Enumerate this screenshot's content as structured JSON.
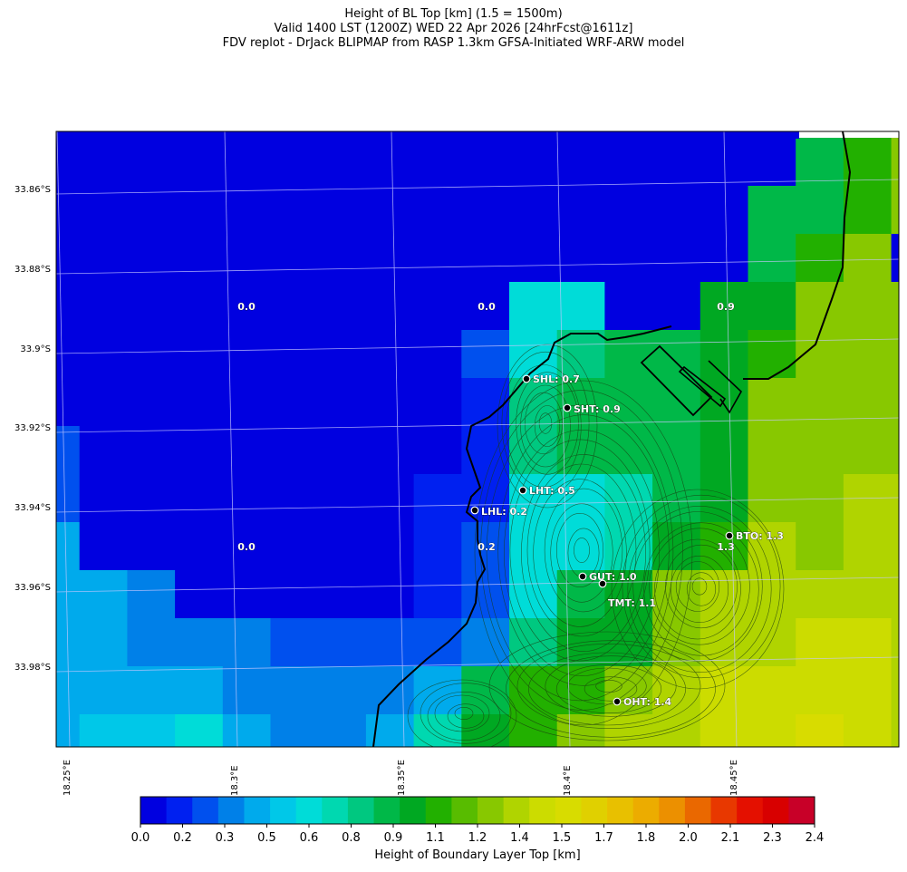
{
  "title": {
    "line1": "Height of BL Top [km] (1.5 = 1500m)",
    "line2": "Valid 1400 LST (1200Z) WED 22 Apr 2026 [24hrFcst@1611z]",
    "line3": "FDV replot - DrJack BLIPMAP from RASP 1.3km GFSA-Initiated WRF-ARW model"
  },
  "map": {
    "lat_labels": [
      "33.86°S",
      "33.88°S",
      "33.9°S",
      "33.92°S",
      "33.94°S",
      "33.96°S",
      "33.98°S"
    ],
    "lon_labels": [
      "18.25°E",
      "18.3°E",
      "18.35°E",
      "18.4°E",
      "18.45°E"
    ],
    "field": {
      "name": "Height of Boundary Layer Top",
      "unit": "km",
      "rows": [
        [
          0.0,
          0.0,
          0.0,
          0.0,
          0.0,
          0.0,
          0.0,
          0.0,
          0.0,
          0.0,
          0.0,
          0.0,
          0.0,
          0.0,
          0.0,
          0.0,
          0.9,
          1.1,
          1.2
        ],
        [
          0.0,
          0.0,
          0.0,
          0.0,
          0.0,
          0.0,
          0.0,
          0.0,
          0.0,
          0.0,
          0.0,
          0.0,
          0.0,
          0.0,
          0.0,
          0.9,
          0.9,
          1.1,
          1.2
        ],
        [
          0.0,
          0.0,
          0.0,
          0.0,
          0.0,
          0.0,
          0.0,
          0.0,
          0.0,
          0.0,
          0.0,
          0.0,
          0.0,
          0.0,
          0.0,
          0.9,
          1.1,
          1.2,
          0.0
        ],
        [
          0.0,
          0.0,
          0.0,
          0.0,
          0.0,
          0.0,
          0.0,
          0.0,
          0.0,
          0.0,
          0.6,
          0.6,
          0.0,
          0.0,
          1.0,
          1.0,
          1.2,
          1.2,
          1.2
        ],
        [
          0.0,
          0.0,
          0.0,
          0.0,
          0.0,
          0.0,
          0.0,
          0.0,
          0.0,
          0.2,
          0.6,
          0.8,
          0.9,
          0.9,
          1.0,
          1.1,
          1.2,
          1.2,
          1.2
        ],
        [
          0.0,
          0.0,
          0.0,
          0.0,
          0.0,
          0.0,
          0.0,
          0.0,
          0.0,
          0.1,
          0.8,
          0.9,
          0.9,
          0.9,
          1.0,
          1.2,
          1.2,
          1.2,
          1.2
        ],
        [
          0.2,
          0.0,
          0.0,
          0.0,
          0.0,
          0.0,
          0.0,
          0.0,
          0.0,
          0.1,
          0.8,
          0.9,
          0.9,
          0.9,
          1.0,
          1.2,
          1.2,
          1.2,
          1.2
        ],
        [
          0.2,
          0.0,
          0.0,
          0.0,
          0.0,
          0.0,
          0.0,
          0.0,
          0.1,
          0.1,
          0.6,
          0.6,
          0.7,
          0.9,
          1.0,
          1.2,
          1.2,
          1.3,
          1.3
        ],
        [
          0.4,
          0.0,
          0.0,
          0.0,
          0.0,
          0.0,
          0.0,
          0.0,
          0.1,
          0.2,
          0.6,
          0.6,
          0.7,
          1.0,
          1.1,
          1.3,
          1.2,
          1.3,
          1.3
        ],
        [
          0.4,
          0.4,
          0.3,
          0.0,
          0.0,
          0.0,
          0.0,
          0.0,
          0.1,
          0.2,
          0.6,
          0.9,
          1.0,
          1.2,
          1.3,
          1.3,
          1.3,
          1.3,
          1.3
        ],
        [
          0.4,
          0.4,
          0.3,
          0.3,
          0.3,
          0.2,
          0.2,
          0.2,
          0.2,
          0.3,
          0.8,
          1.0,
          1.0,
          1.2,
          1.3,
          1.3,
          1.4,
          1.4,
          1.3
        ],
        [
          0.4,
          0.4,
          0.4,
          0.4,
          0.3,
          0.3,
          0.3,
          0.3,
          0.4,
          0.9,
          1.1,
          1.1,
          1.2,
          1.3,
          1.4,
          1.4,
          1.4,
          1.4,
          1.3
        ],
        [
          0.4,
          0.5,
          0.5,
          0.6,
          0.4,
          0.3,
          0.3,
          0.4,
          0.7,
          1.0,
          1.1,
          1.2,
          1.3,
          1.3,
          1.4,
          1.4,
          1.5,
          1.4,
          1.3
        ],
        [
          0.5,
          0.6,
          0.6,
          0.6,
          0.5,
          0.5,
          0.5,
          0.6,
          0.8,
          1.0,
          1.1,
          1.2,
          1.3,
          1.4,
          1.4,
          1.5,
          1.5,
          1.4,
          1.3
        ],
        [
          0.6,
          0.6,
          0.7,
          0.8,
          0.7,
          0.6,
          0.6,
          0.6,
          0.8,
          1.1,
          1.1,
          1.2,
          1.3,
          1.4,
          1.4,
          1.5,
          1.4,
          1.4,
          1.3
        ]
      ]
    },
    "cell_labels": [
      "0.0",
      "0.0",
      "0.9",
      "0.0",
      "0.2",
      "1.3"
    ],
    "stations": [
      {
        "code": "SHL",
        "label": "SHL: 0.7"
      },
      {
        "code": "SHT",
        "label": "SHT: 0.9"
      },
      {
        "code": "LHT",
        "label": "LHT: 0.5"
      },
      {
        "code": "LHL",
        "label": "LHL: 0.2"
      },
      {
        "code": "BTO",
        "label": "BTO: 1.3"
      },
      {
        "code": "GUT",
        "label": "GUT: 1.0"
      },
      {
        "code": "TMT",
        "label": "TMT: 1.1"
      },
      {
        "code": "OHT",
        "label": "OHT: 1.4"
      }
    ]
  },
  "colorbar": {
    "title": "Height of Boundary Layer Top [km]",
    "tick_labels": [
      "0.0",
      "0.2",
      "0.3",
      "0.5",
      "0.6",
      "0.8",
      "0.9",
      "1.1",
      "1.2",
      "1.4",
      "1.5",
      "1.7",
      "1.8",
      "2.0",
      "2.1",
      "2.3",
      "2.4"
    ],
    "colors": [
      "#0000e0",
      "#0020f0",
      "#0050ee",
      "#0080e8",
      "#00aaec",
      "#00c8e8",
      "#00dcd8",
      "#00d8b0",
      "#00c880",
      "#00b848",
      "#00a822",
      "#22b000",
      "#58bc00",
      "#88c800",
      "#b0d400",
      "#ccdc00",
      "#d8dc00",
      "#e0d000",
      "#e8c000",
      "#ecac00",
      "#ec9000",
      "#ea6800",
      "#e83800",
      "#e41000",
      "#d80000",
      "#c80028"
    ]
  }
}
